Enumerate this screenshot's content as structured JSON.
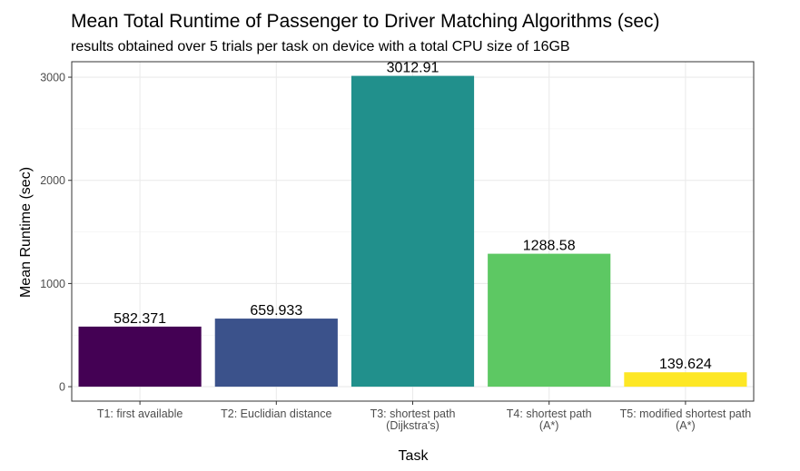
{
  "chart_data": {
    "type": "bar",
    "title": "Mean Total Runtime of Passenger to Driver Matching Algorithms (sec)",
    "subtitle": "results obtained over 5 trials per task on device with a total CPU size of 16GB",
    "xlabel": "Task",
    "ylabel": "Mean Runtime (sec)",
    "categories": [
      [
        "T1: first available"
      ],
      [
        "T2: Euclidian distance"
      ],
      [
        "T3: shortest path",
        "(Dijkstra's)"
      ],
      [
        "T4: shortest path",
        "(A*)"
      ],
      [
        "T5: modified shortest path",
        "(A*)"
      ]
    ],
    "values": [
      582.371,
      659.933,
      3012.91,
      1288.58,
      139.624
    ],
    "value_labels": [
      "582.371",
      "659.933",
      "3012.91",
      "1288.58",
      "139.624"
    ],
    "colors": [
      "#440154",
      "#3B528B",
      "#21908C",
      "#5DC863",
      "#FDE725"
    ],
    "ylim": [
      -140,
      3150
    ],
    "yticks": [
      0,
      1000,
      2000,
      3000
    ],
    "grid": true,
    "legend": "none"
  }
}
